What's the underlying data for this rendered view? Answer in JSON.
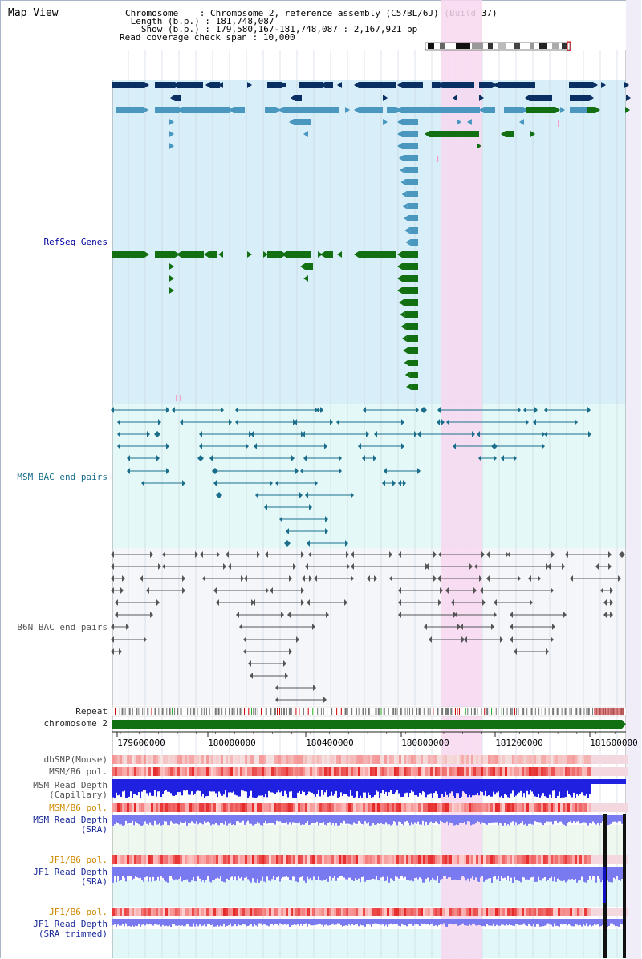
{
  "page_title": "Map View",
  "header": {
    "chromosome_label": "Chromosome    ",
    "chromosome_value": "Chromosome 2, reference assembly (C57BL/6J) (Build 37)",
    "length_label": " Length (b.p.)",
    "length_value": "181,748,087",
    "show_label": "   Show (b.p.)",
    "show_value": "179,580,167-181,748,087 : 2,167,921 bp",
    "span_label": "Read coverage check span",
    "span_value": "10,000"
  },
  "tracks": {
    "refseq": "RefSeq Genes",
    "msm_bac": "MSM BAC end pairs",
    "b6n_bac": "B6N BAC end pairs",
    "repeat": "Repeat",
    "chromosome": "chromosome 2",
    "dbsnp": "dbSNP(Mouse)",
    "msm_b6_pol_1": "MSM/B6 pol.",
    "msm_read_depth_cap_1": "MSM Read Depth",
    "msm_read_depth_cap_2": "(Capillary)",
    "msm_b6_pol_2": "MSM/B6 pol.",
    "msm_read_depth_sra_1": "MSM Read Depth",
    "msm_read_depth_sra_2": "(SRA)",
    "jf1_b6_pol_1": "JF1/B6 pol.",
    "jf1_read_depth_sra_1": "JF1 Read Depth",
    "jf1_read_depth_sra_2": "(SRA)",
    "jf1_b6_pol_2": "JF1/B6 pol.",
    "jf1_read_depth_trim_1": "JF1 Read Depth",
    "jf1_read_depth_trim_2": "(SRA trimmed)"
  },
  "axis_ticks": [
    "179600000",
    "180000000",
    "180400000",
    "180800000",
    "181200000",
    "181600000"
  ],
  "colors": {
    "highlight": "#f8d8f0",
    "refseq_bg": "#d8eef8",
    "msm_bg": "#e4f8f8",
    "b6n_bg": "#f4f6fa",
    "gene_dark": "#0a2f63",
    "gene_mid": "#4a98c0",
    "gene_green": "#127012",
    "msm_pair": "#1a6e8c",
    "b6n_pair": "#555555",
    "depth_blue": "#2020e0",
    "depth_light": "#7a7af0"
  }
}
